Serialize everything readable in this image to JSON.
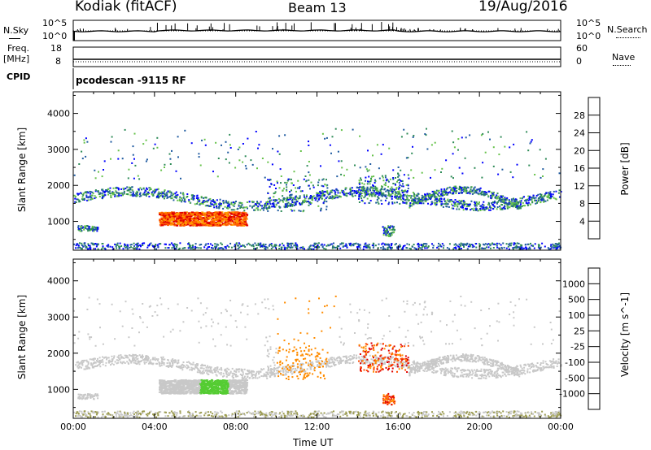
{
  "header": {
    "station": "Kodiak (fitACF)",
    "beam": "Beam 13",
    "date": "19/Aug/2016"
  },
  "labels": {
    "nsky": "N.Sky",
    "nsearch": "N.Search",
    "freq": "Freq.",
    "freq_unit": "[MHz]",
    "nave": "Nave",
    "cpid": "CPID",
    "cpid_value": "pcodescan -9115 RF"
  },
  "noise_ticks": {
    "left": [
      "10^5",
      "10^0"
    ],
    "right": [
      "10^5",
      "10^0"
    ]
  },
  "freq_ticks": {
    "left": [
      "18",
      "8"
    ],
    "right": [
      "60",
      "0"
    ]
  },
  "colors": {
    "power": [
      "#0000ff",
      "#1e5aa0",
      "#2e8b57",
      "#66c24a",
      "#ffd400",
      "#ff9a00",
      "#ff5a00",
      "#e00000"
    ],
    "velocity": [
      "#1f2fcc",
      "#2b6fb0",
      "#1f8f3c",
      "#55cc33",
      "#c8c8c8",
      "#ffb300",
      "#ff8c00",
      "#ff4a00",
      "#e00000"
    ],
    "ground": "#9b9b50"
  },
  "chart_data": [
    {
      "type": "heatmap",
      "title": "",
      "xlabel": "Time UT",
      "ylabel": "Slant Range [km]",
      "x_ticks": [
        "00:00",
        "04:00",
        "08:00",
        "12:00",
        "16:00",
        "20:00",
        "00:00"
      ],
      "x_range_hours": [
        0,
        24
      ],
      "y_ticks": [
        1000,
        2000,
        3000,
        4000
      ],
      "ylim": [
        200,
        4600
      ],
      "colorbar": {
        "label": "Power [dB]",
        "ticks": [
          4,
          8,
          12,
          16,
          20,
          24,
          28
        ],
        "range": [
          0,
          32
        ]
      }
    },
    {
      "type": "heatmap",
      "title": "",
      "xlabel": "Time UT",
      "ylabel": "Slant Range [km]",
      "x_ticks": [
        "00:00",
        "04:00",
        "08:00",
        "12:00",
        "16:00",
        "20:00",
        "00:00"
      ],
      "x_range_hours": [
        0,
        24
      ],
      "y_ticks": [
        1000,
        2000,
        3000,
        4000
      ],
      "ylim": [
        200,
        4600
      ],
      "colorbar": {
        "label": "Velocity [m s^-1]",
        "ticks": [
          "1000",
          "500",
          "100",
          "25",
          "-25",
          "-100",
          "-500",
          "-1000"
        ]
      }
    }
  ]
}
